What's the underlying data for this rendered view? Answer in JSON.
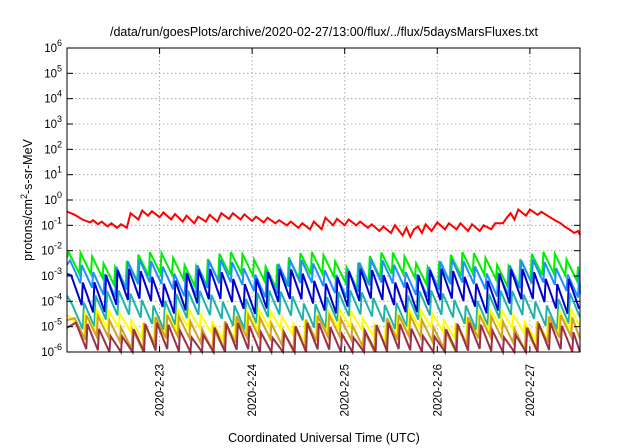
{
  "chart_data": {
    "type": "line",
    "title": "/data/run/goesPlots/archive/2020-02-27/13:00/flux/../flux/5daysMarsFluxes.txt",
    "xlabel": "Coordinated Universal Time (UTC)",
    "ylabel": {
      "pre": "protons/cm",
      "sup": "2",
      "post": "-s-sr-MeV"
    },
    "y_scale": "log",
    "ylim": [
      1e-06,
      1000000.0
    ],
    "xlim": [
      "2020-02-22T00:00",
      "2020-02-27T13:00"
    ],
    "grid": true,
    "x_ticks": [
      {
        "x": "2020-02-23T00:00",
        "label": "2020-2-23"
      },
      {
        "x": "2020-02-24T00:00",
        "label": "2020-2-24"
      },
      {
        "x": "2020-02-25T00:00",
        "label": "2020-2-25"
      },
      {
        "x": "2020-02-26T00:00",
        "label": "2020-2-26"
      },
      {
        "x": "2020-02-27T00:00",
        "label": "2020-2-27"
      }
    ],
    "y_ticks": [
      {
        "y": 1e-06,
        "base": "10",
        "exp": "-6"
      },
      {
        "y": 1e-05,
        "base": "10",
        "exp": "-5"
      },
      {
        "y": 0.0001,
        "base": "10",
        "exp": "-4"
      },
      {
        "y": 0.001,
        "base": "10",
        "exp": "-3"
      },
      {
        "y": 0.01,
        "base": "10",
        "exp": "-2"
      },
      {
        "y": 0.1,
        "base": "10",
        "exp": "-1"
      },
      {
        "y": 1.0,
        "base": "10",
        "exp": "0"
      },
      {
        "y": 10.0,
        "base": "10",
        "exp": "1"
      },
      {
        "y": 100.0,
        "base": "10",
        "exp": "2"
      },
      {
        "y": 1000.0,
        "base": "10",
        "exp": "3"
      },
      {
        "y": 10000.0,
        "base": "10",
        "exp": "4"
      },
      {
        "y": 100000.0,
        "base": "10",
        "exp": "5"
      },
      {
        "y": 1000000.0,
        "base": "10",
        "exp": "6"
      }
    ],
    "series": [
      {
        "color": "#ff0000",
        "points": [
          [
            "2020-02-22T00:00",
            0.35
          ],
          [
            "2020-02-22T02:00",
            0.26
          ],
          [
            "2020-02-22T04:00",
            0.17
          ],
          [
            "2020-02-22T06:00",
            0.13
          ],
          [
            "2020-02-22T06:45",
            0.16
          ],
          [
            "2020-02-22T08:00",
            0.11
          ],
          [
            "2020-02-22T09:00",
            0.14
          ],
          [
            "2020-02-22T10:30",
            0.09
          ],
          [
            "2020-02-22T11:30",
            0.12
          ],
          [
            "2020-02-22T13:00",
            0.08
          ],
          [
            "2020-02-22T14:00",
            0.11
          ],
          [
            "2020-02-22T15:30",
            0.08
          ],
          [
            "2020-02-22T16:30",
            0.3
          ],
          [
            "2020-02-22T18:30",
            0.17
          ],
          [
            "2020-02-22T19:30",
            0.38
          ],
          [
            "2020-02-22T21:00",
            0.24
          ],
          [
            "2020-02-22T22:00",
            0.36
          ],
          [
            "2020-02-23T00:00",
            0.21
          ],
          [
            "2020-02-23T01:00",
            0.32
          ],
          [
            "2020-02-23T03:00",
            0.17
          ],
          [
            "2020-02-23T04:00",
            0.28
          ],
          [
            "2020-02-23T06:00",
            0.14
          ],
          [
            "2020-02-23T07:00",
            0.24
          ],
          [
            "2020-02-23T09:00",
            0.12
          ],
          [
            "2020-02-23T10:00",
            0.22
          ],
          [
            "2020-02-23T12:00",
            0.14
          ],
          [
            "2020-02-23T13:00",
            0.26
          ],
          [
            "2020-02-23T15:00",
            0.14
          ],
          [
            "2020-02-23T16:00",
            0.3
          ],
          [
            "2020-02-23T18:00",
            0.18
          ],
          [
            "2020-02-23T19:00",
            0.3
          ],
          [
            "2020-02-23T21:00",
            0.17
          ],
          [
            "2020-02-23T22:00",
            0.27
          ],
          [
            "2020-02-24T00:00",
            0.15
          ],
          [
            "2020-02-24T01:00",
            0.22
          ],
          [
            "2020-02-24T03:00",
            0.13
          ],
          [
            "2020-02-24T04:00",
            0.2
          ],
          [
            "2020-02-24T06:00",
            0.12
          ],
          [
            "2020-02-24T07:00",
            0.16
          ],
          [
            "2020-02-24T09:00",
            0.1
          ],
          [
            "2020-02-24T10:00",
            0.14
          ],
          [
            "2020-02-24T12:00",
            0.08
          ],
          [
            "2020-02-24T13:00",
            0.12
          ],
          [
            "2020-02-24T15:00",
            0.07
          ],
          [
            "2020-02-24T16:00",
            0.14
          ],
          [
            "2020-02-24T18:00",
            0.07
          ],
          [
            "2020-02-24T19:00",
            0.2
          ],
          [
            "2020-02-24T21:00",
            0.1
          ],
          [
            "2020-02-24T22:00",
            0.18
          ],
          [
            "2020-02-25T00:00",
            0.1
          ],
          [
            "2020-02-25T01:00",
            0.17
          ],
          [
            "2020-02-25T03:00",
            0.1
          ],
          [
            "2020-02-25T04:00",
            0.14
          ],
          [
            "2020-02-25T06:00",
            0.08
          ],
          [
            "2020-02-25T07:00",
            0.11
          ],
          [
            "2020-02-25T09:00",
            0.06
          ],
          [
            "2020-02-25T10:00",
            0.09
          ],
          [
            "2020-02-25T12:00",
            0.05
          ],
          [
            "2020-02-25T13:00",
            0.1
          ],
          [
            "2020-02-25T15:00",
            0.04
          ],
          [
            "2020-02-25T16:00",
            0.08
          ],
          [
            "2020-02-25T17:00",
            0.035
          ],
          [
            "2020-02-25T18:00",
            0.07
          ],
          [
            "2020-02-25T19:00",
            0.09
          ],
          [
            "2020-02-25T20:00",
            0.05
          ],
          [
            "2020-02-25T21:00",
            0.11
          ],
          [
            "2020-02-25T22:30",
            0.06
          ],
          [
            "2020-02-26T00:00",
            0.13
          ],
          [
            "2020-02-26T02:00",
            0.07
          ],
          [
            "2020-02-26T03:00",
            0.12
          ],
          [
            "2020-02-26T05:00",
            0.07
          ],
          [
            "2020-02-26T06:00",
            0.12
          ],
          [
            "2020-02-26T08:00",
            0.06
          ],
          [
            "2020-02-26T09:00",
            0.11
          ],
          [
            "2020-02-26T11:00",
            0.06
          ],
          [
            "2020-02-26T12:00",
            0.1
          ],
          [
            "2020-02-26T14:00",
            0.07
          ],
          [
            "2020-02-26T15:00",
            0.12
          ],
          [
            "2020-02-26T17:00",
            0.12
          ],
          [
            "2020-02-26T18:00",
            0.2
          ],
          [
            "2020-02-26T19:00",
            0.3
          ],
          [
            "2020-02-26T20:00",
            0.17
          ],
          [
            "2020-02-26T21:00",
            0.42
          ],
          [
            "2020-02-26T23:00",
            0.24
          ],
          [
            "2020-02-27T00:00",
            0.42
          ],
          [
            "2020-02-27T02:00",
            0.26
          ],
          [
            "2020-02-27T03:00",
            0.34
          ],
          [
            "2020-02-27T05:00",
            0.22
          ],
          [
            "2020-02-27T06:30",
            0.16
          ],
          [
            "2020-02-27T08:00",
            0.12
          ],
          [
            "2020-02-27T09:00",
            0.09
          ],
          [
            "2020-02-27T10:30",
            0.065
          ],
          [
            "2020-02-27T11:30",
            0.05
          ],
          [
            "2020-02-27T12:30",
            0.06
          ],
          [
            "2020-02-27T13:00",
            0.042
          ]
        ]
      },
      {
        "color": "#00ee00",
        "base": 0.0055,
        "drop": 7,
        "period_h": 3.0,
        "phase_h": 0.5
      },
      {
        "color": "#1e90ff",
        "base": 0.0028,
        "drop": 8,
        "period_h": 3.0,
        "phase_h": 0.8
      },
      {
        "color": "#0000cd",
        "base": 0.0012,
        "drop": 15,
        "period_h": 3.0,
        "phase_h": 1.1
      },
      {
        "color": "#20b2aa",
        "base": 0.00017,
        "drop": 9,
        "period_h": 3.0,
        "phase_h": 1.4
      },
      {
        "color": "#ffff00",
        "base": 3e-05,
        "drop": 5,
        "period_h": 3.0,
        "phase_h": 1.7
      },
      {
        "color": "#d4a020",
        "base": 1.8e-05,
        "drop": 7,
        "period_h": 3.0,
        "phase_h": 2.0
      },
      {
        "color": "#9b3048",
        "base": 9e-06,
        "drop": 11,
        "period_h": 3.0,
        "phase_h": 2.3
      }
    ]
  }
}
